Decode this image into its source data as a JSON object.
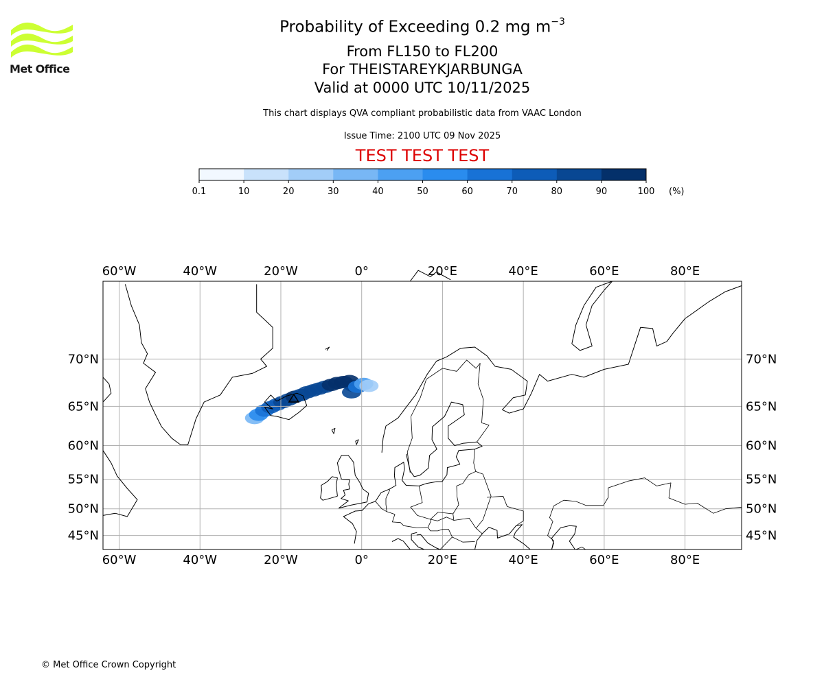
{
  "logo": {
    "text": "Met Office",
    "color": "#ccff33"
  },
  "title": {
    "main": "Probability of Exceeding 0.2 mg m",
    "main_sup": "−3",
    "flight_levels": "From FL150 to FL200",
    "volcano": "For THEISTAREYKJARBUNGA",
    "valid": "Valid at 0000 UTC 10/11/2025"
  },
  "caption": "This chart displays QVA compliant probabilistic data from VAAC London",
  "issue_time": "Issue Time: 2100 UTC 09 Nov 2025",
  "test_banner": {
    "text": "TEST TEST TEST",
    "color": "#dd0000"
  },
  "colorbar": {
    "unit": "(%)",
    "ticks": [
      "0.1",
      "10",
      "20",
      "30",
      "40",
      "50",
      "60",
      "70",
      "80",
      "90",
      "100"
    ],
    "colors": [
      "#f2f8ff",
      "#c9e2fb",
      "#a2cdf8",
      "#78b7f5",
      "#4ca0f2",
      "#2a8cee",
      "#1872d6",
      "#0d5cb8",
      "#084793",
      "#04306a"
    ]
  },
  "map": {
    "lon_range": [
      -64,
      94
    ],
    "lat_range": [
      42.2,
      76.2
    ],
    "lon_ticks": [
      {
        "value": -60,
        "label": "60°W"
      },
      {
        "value": -40,
        "label": "40°W"
      },
      {
        "value": -20,
        "label": "20°W"
      },
      {
        "value": 0,
        "label": "0°"
      },
      {
        "value": 20,
        "label": "20°E"
      },
      {
        "value": 40,
        "label": "40°E"
      },
      {
        "value": 60,
        "label": "60°E"
      },
      {
        "value": 80,
        "label": "80°E"
      }
    ],
    "lat_ticks": [
      {
        "value": 70,
        "label": "70°N"
      },
      {
        "value": 65,
        "label": "65°N"
      },
      {
        "value": 60,
        "label": "60°N"
      },
      {
        "value": 55,
        "label": "55°N"
      },
      {
        "value": 50,
        "label": "50°N"
      },
      {
        "value": 45,
        "label": "45°N"
      }
    ],
    "grid": true,
    "coastline_color": "#000000",
    "volcano_marker": {
      "name": "Theistareykjarbunga",
      "lon": -16.8,
      "lat": 65.9
    },
    "plume": [
      {
        "lon": -26.5,
        "lat": 63.6,
        "level": 3
      },
      {
        "lon": -25.5,
        "lat": 64.0,
        "level": 5
      },
      {
        "lon": -24,
        "lat": 64.5,
        "level": 6
      },
      {
        "lon": -22.5,
        "lat": 64.9,
        "level": 7
      },
      {
        "lon": -21,
        "lat": 65.2,
        "level": 7
      },
      {
        "lon": -19.5,
        "lat": 65.5,
        "level": 8
      },
      {
        "lon": -18,
        "lat": 65.8,
        "level": 8
      },
      {
        "lon": -16.5,
        "lat": 66.1,
        "level": 9
      },
      {
        "lon": -15,
        "lat": 66.3,
        "level": 8
      },
      {
        "lon": -13.5,
        "lat": 66.6,
        "level": 8
      },
      {
        "lon": -12,
        "lat": 66.8,
        "level": 8
      },
      {
        "lon": -10.5,
        "lat": 67.0,
        "level": 8
      },
      {
        "lon": -9,
        "lat": 67.2,
        "level": 8
      },
      {
        "lon": -7.5,
        "lat": 67.4,
        "level": 9
      },
      {
        "lon": -6,
        "lat": 67.6,
        "level": 9
      },
      {
        "lon": -4.5,
        "lat": 67.7,
        "level": 9
      },
      {
        "lon": -3,
        "lat": 67.8,
        "level": 9
      },
      {
        "lon": -2,
        "lat": 67.3,
        "level": 9
      },
      {
        "lon": -2.5,
        "lat": 66.6,
        "level": 8
      },
      {
        "lon": -1,
        "lat": 67.2,
        "level": 6
      },
      {
        "lon": 0.5,
        "lat": 67.5,
        "level": 4
      },
      {
        "lon": 1.8,
        "lat": 67.3,
        "level": 2
      }
    ]
  }
}
